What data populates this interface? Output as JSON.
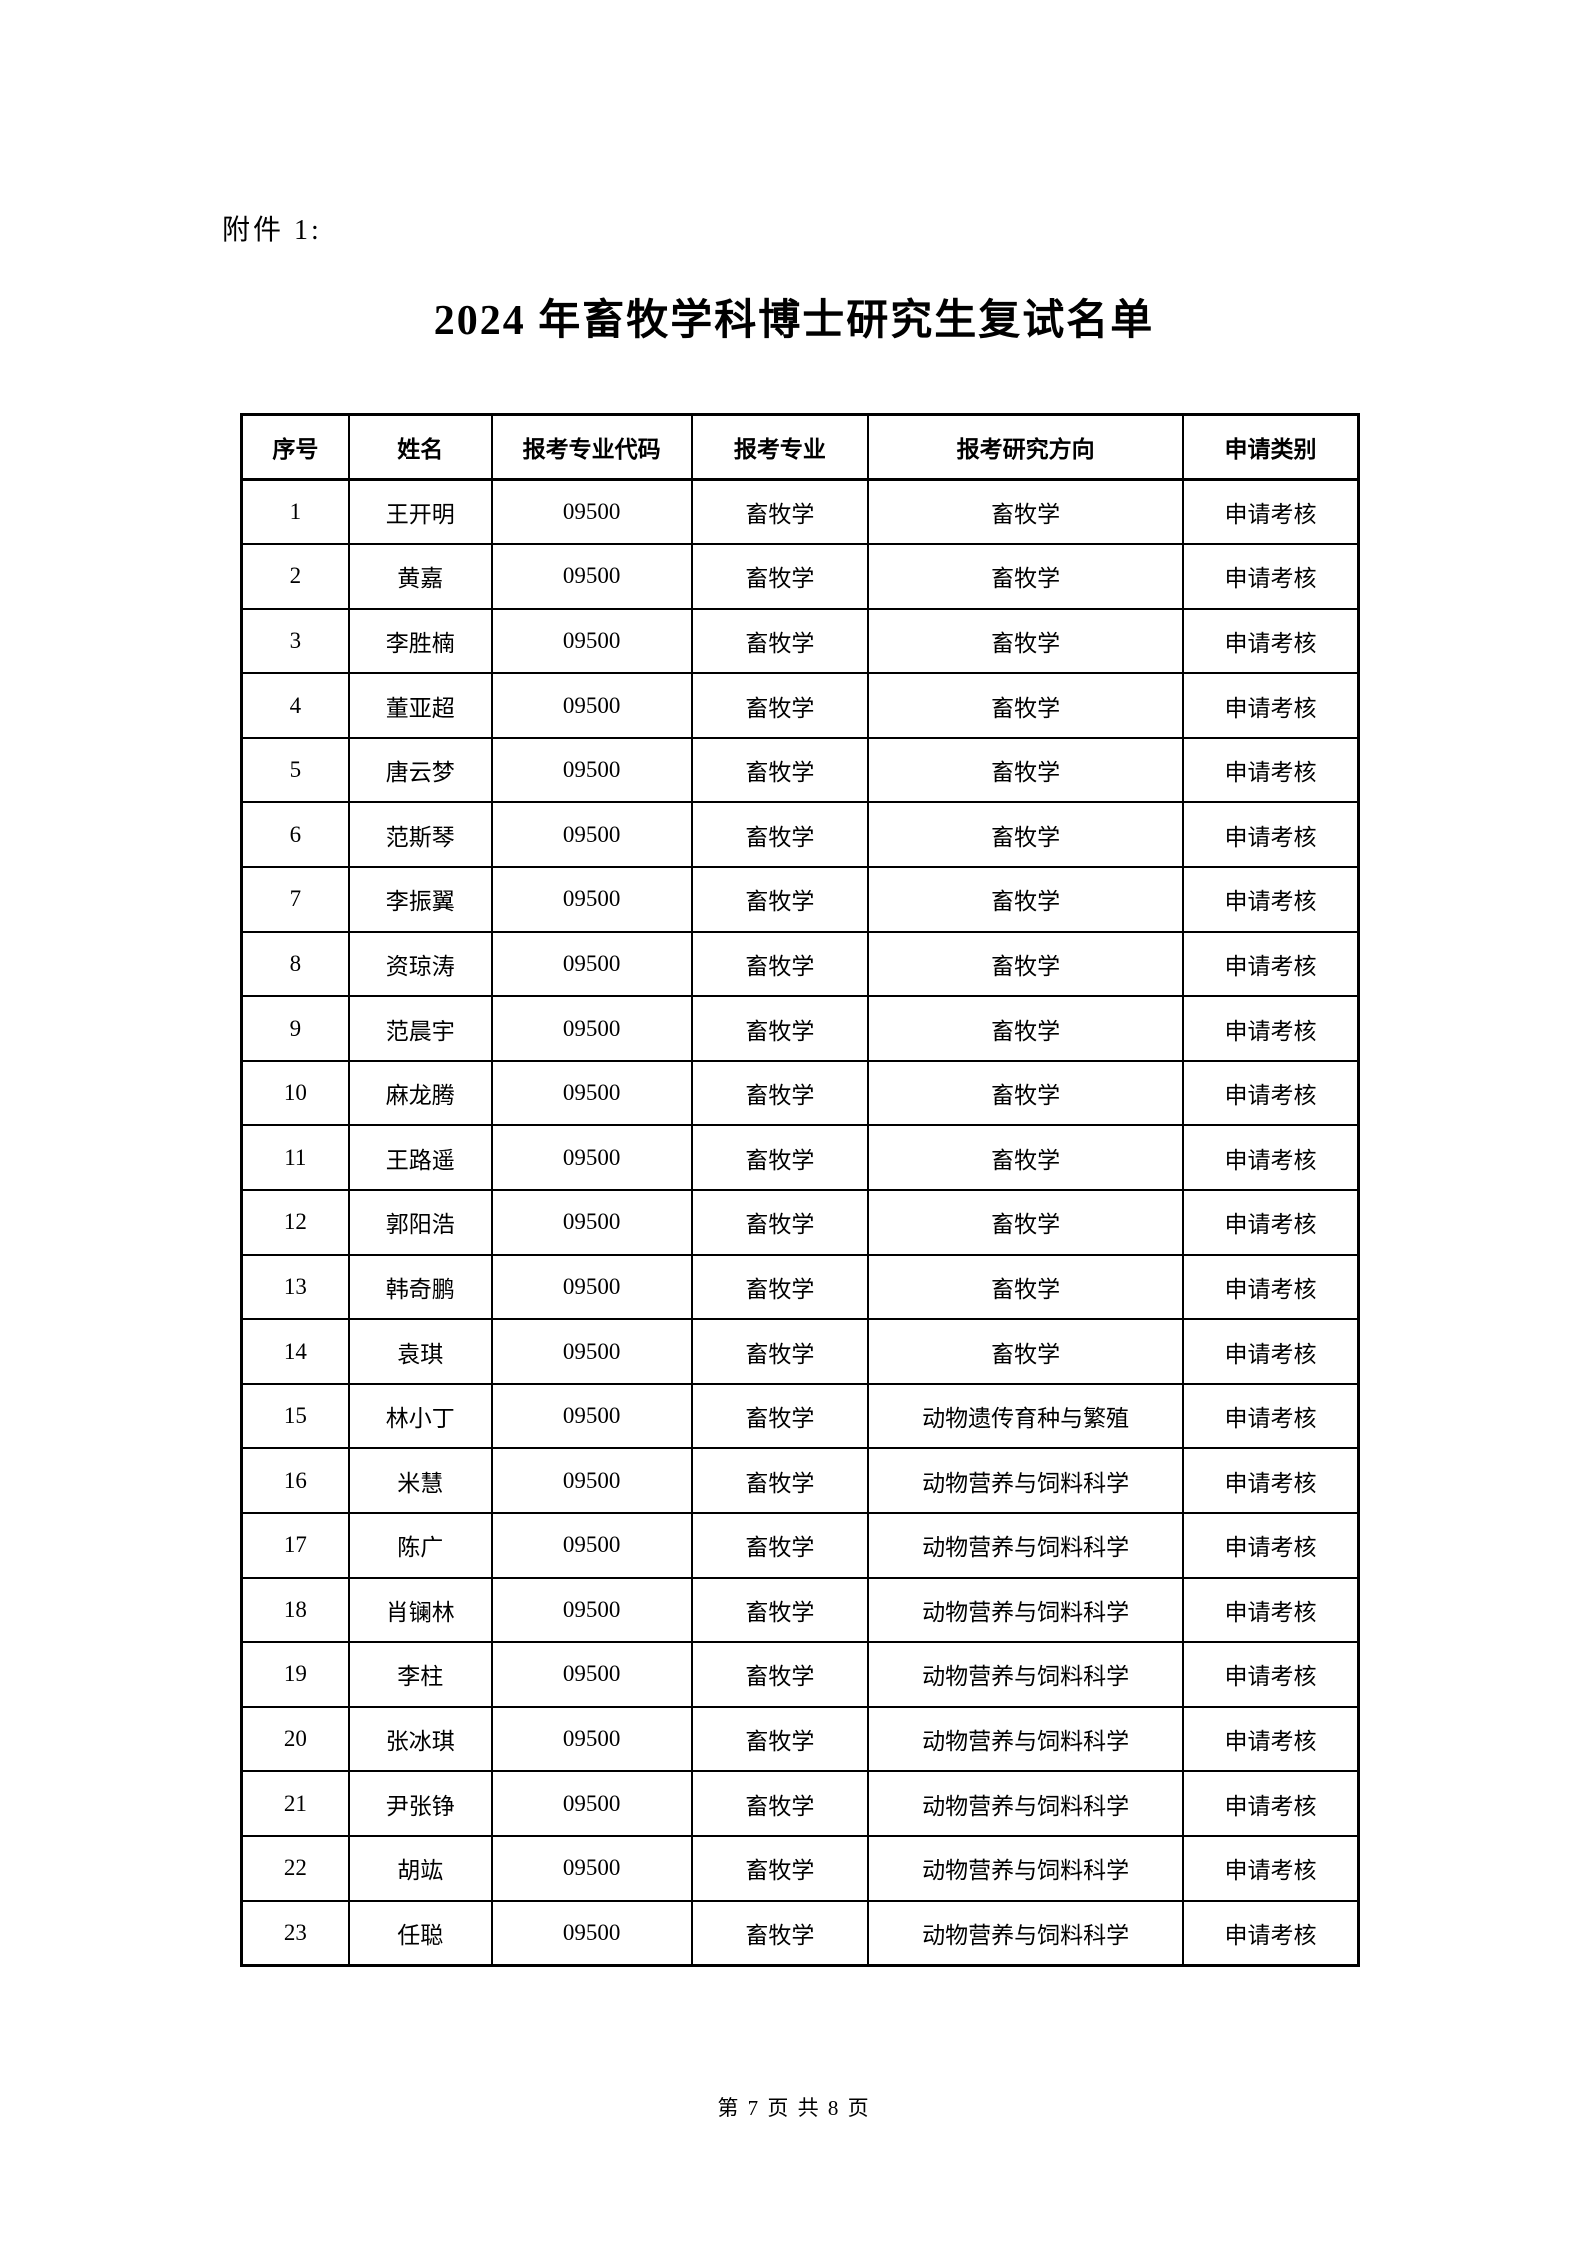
{
  "doc": {
    "attachment_label": "附件 1:",
    "title": "2024 年畜牧学科博士研究生复试名单"
  },
  "table": {
    "headers": [
      "序号",
      "姓名",
      "报考专业代码",
      "报考专业",
      "报考研究方向",
      "申请类别"
    ],
    "rows": [
      {
        "no": "1",
        "name": "王开明",
        "code": "09500",
        "major": "畜牧学",
        "direction": "畜牧学",
        "category": "申请考核"
      },
      {
        "no": "2",
        "name": "黄嘉",
        "code": "09500",
        "major": "畜牧学",
        "direction": "畜牧学",
        "category": "申请考核"
      },
      {
        "no": "3",
        "name": "李胜楠",
        "code": "09500",
        "major": "畜牧学",
        "direction": "畜牧学",
        "category": "申请考核"
      },
      {
        "no": "4",
        "name": "董亚超",
        "code": "09500",
        "major": "畜牧学",
        "direction": "畜牧学",
        "category": "申请考核"
      },
      {
        "no": "5",
        "name": "唐云梦",
        "code": "09500",
        "major": "畜牧学",
        "direction": "畜牧学",
        "category": "申请考核"
      },
      {
        "no": "6",
        "name": "范斯琴",
        "code": "09500",
        "major": "畜牧学",
        "direction": "畜牧学",
        "category": "申请考核"
      },
      {
        "no": "7",
        "name": "李振翼",
        "code": "09500",
        "major": "畜牧学",
        "direction": "畜牧学",
        "category": "申请考核"
      },
      {
        "no": "8",
        "name": "资琼涛",
        "code": "09500",
        "major": "畜牧学",
        "direction": "畜牧学",
        "category": "申请考核"
      },
      {
        "no": "9",
        "name": "范晨宇",
        "code": "09500",
        "major": "畜牧学",
        "direction": "畜牧学",
        "category": "申请考核"
      },
      {
        "no": "10",
        "name": "麻龙腾",
        "code": "09500",
        "major": "畜牧学",
        "direction": "畜牧学",
        "category": "申请考核"
      },
      {
        "no": "11",
        "name": "王路遥",
        "code": "09500",
        "major": "畜牧学",
        "direction": "畜牧学",
        "category": "申请考核"
      },
      {
        "no": "12",
        "name": "郭阳浩",
        "code": "09500",
        "major": "畜牧学",
        "direction": "畜牧学",
        "category": "申请考核"
      },
      {
        "no": "13",
        "name": "韩奇鹏",
        "code": "09500",
        "major": "畜牧学",
        "direction": "畜牧学",
        "category": "申请考核"
      },
      {
        "no": "14",
        "name": "袁琪",
        "code": "09500",
        "major": "畜牧学",
        "direction": "畜牧学",
        "category": "申请考核"
      },
      {
        "no": "15",
        "name": "林小丁",
        "code": "09500",
        "major": "畜牧学",
        "direction": "动物遗传育种与繁殖",
        "category": "申请考核"
      },
      {
        "no": "16",
        "name": "米慧",
        "code": "09500",
        "major": "畜牧学",
        "direction": "动物营养与饲料科学",
        "category": "申请考核"
      },
      {
        "no": "17",
        "name": "陈广",
        "code": "09500",
        "major": "畜牧学",
        "direction": "动物营养与饲料科学",
        "category": "申请考核"
      },
      {
        "no": "18",
        "name": "肖镧林",
        "code": "09500",
        "major": "畜牧学",
        "direction": "动物营养与饲料科学",
        "category": "申请考核"
      },
      {
        "no": "19",
        "name": "李柱",
        "code": "09500",
        "major": "畜牧学",
        "direction": "动物营养与饲料科学",
        "category": "申请考核"
      },
      {
        "no": "20",
        "name": "张冰琪",
        "code": "09500",
        "major": "畜牧学",
        "direction": "动物营养与饲料科学",
        "category": "申请考核"
      },
      {
        "no": "21",
        "name": "尹张铮",
        "code": "09500",
        "major": "畜牧学",
        "direction": "动物营养与饲料科学",
        "category": "申请考核"
      },
      {
        "no": "22",
        "name": "胡竑",
        "code": "09500",
        "major": "畜牧学",
        "direction": "动物营养与饲料科学",
        "category": "申请考核"
      },
      {
        "no": "23",
        "name": "任聪",
        "code": "09500",
        "major": "畜牧学",
        "direction": "动物营养与饲料科学",
        "category": "申请考核"
      }
    ]
  },
  "footer": {
    "text": "第 7 页 共 8 页"
  }
}
